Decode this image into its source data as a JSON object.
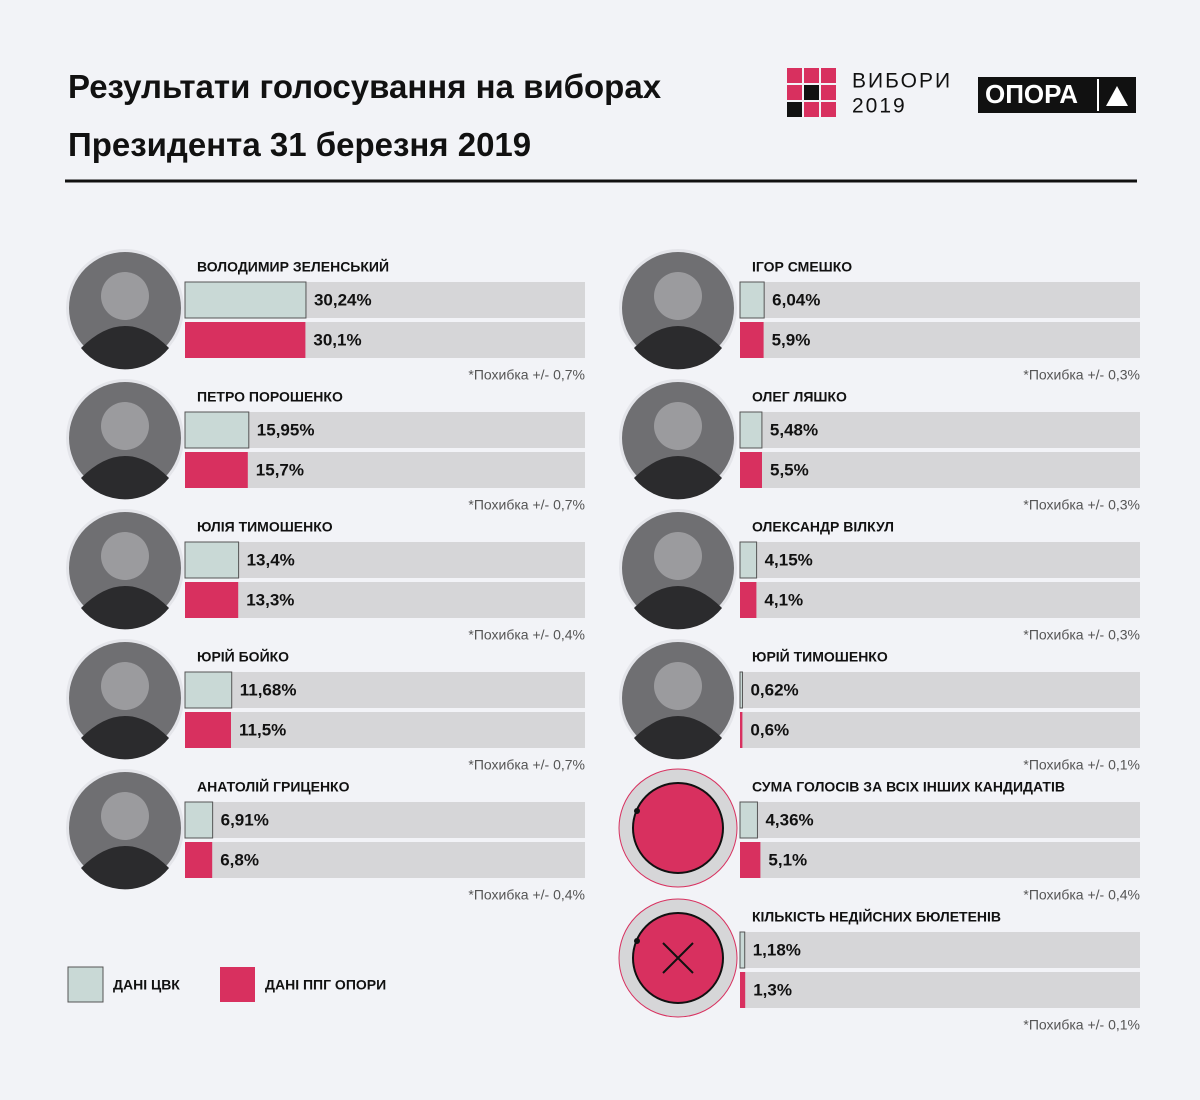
{
  "chart_data": {
    "type": "paired-bar",
    "title": "Результати голосування на виборах Президента 31 березня 2019",
    "categories": [
      "ВОЛОДИМИР ЗЕЛЕНСЬКИЙ",
      "ПЕТРО ПОРОШЕНКО",
      "ЮЛІЯ ТИМОШЕНКО",
      "ЮРІЙ БОЙКО",
      "АНАТОЛІЙ ГРИЦЕНКО",
      "ІГОР СМЕШКО",
      "ОЛЕГ ЛЯШКО",
      "ОЛЕКСАНДР ВІЛКУЛ",
      "ЮРІЙ ТИМОШЕНКО",
      "СУМА ГОЛОСІВ ЗА ВСІХ ІНШИХ КАНДИДАТІВ",
      "КІЛЬКІСТЬ НЕДІЙСНИХ БЮЛЕТЕНІВ"
    ],
    "series": [
      {
        "name": "ДАНІ ЦВК",
        "color": "#c9d9d6",
        "values": [
          30.24,
          15.95,
          13.4,
          11.68,
          6.91,
          6.04,
          5.48,
          4.15,
          0.62,
          4.36,
          1.18
        ],
        "value_labels": [
          "30,24%",
          "15,95%",
          "13,4%",
          "11,68%",
          "6,91%",
          "6,04%",
          "5,48%",
          "4,15%",
          "0,62%",
          "4,36%",
          "1,18%"
        ]
      },
      {
        "name": "ДАНІ ППГ ОПОРИ",
        "color": "#d8305f",
        "values": [
          30.1,
          15.7,
          13.3,
          11.5,
          6.8,
          5.9,
          5.5,
          4.1,
          0.6,
          5.1,
          1.3
        ],
        "value_labels": [
          "30,1%",
          "15,7%",
          "13,3%",
          "11,5%",
          "6,8%",
          "5,9%",
          "5,5%",
          "4,1%",
          "0,6%",
          "5,1%",
          "1,3%"
        ]
      }
    ],
    "error_labels": [
      "*Похибка +/- 0,7%",
      "*Похибка +/- 0,7%",
      "*Похибка +/- 0,4%",
      "*Похибка +/- 0,7%",
      "*Похибка +/- 0,4%",
      "*Похибка +/- 0,3%",
      "*Похибка +/- 0,3%",
      "*Похибка +/- 0,3%",
      "*Похибка +/- 0,1%",
      "*Похибка +/- 0,4%",
      "*Похибка +/- 0,1%"
    ],
    "xlim": [
      0,
      100
    ]
  },
  "branding": {
    "election_logo": [
      "ВИБОРИ",
      "2019"
    ],
    "org_logo": "ОПОРА"
  }
}
